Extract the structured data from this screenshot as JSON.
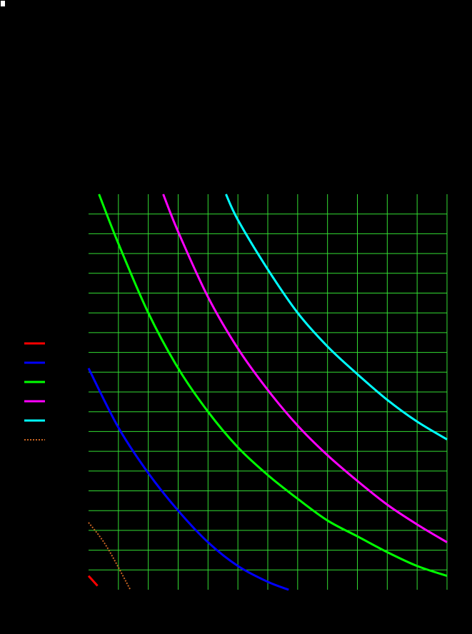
{
  "page": {
    "background": "#000000"
  },
  "chart_data": {
    "type": "line",
    "title": "",
    "xlabel": "",
    "ylabel": "",
    "grid": true,
    "grid_color": "#33dd33",
    "legend_placement": "left",
    "xlim": [
      0,
      12
    ],
    "ylim": [
      0,
      20
    ],
    "x_ticks": [
      0,
      1,
      2,
      3,
      4,
      5,
      6,
      7,
      8,
      9,
      10,
      11,
      12
    ],
    "y_ticks": [
      0,
      1,
      2,
      3,
      4,
      5,
      6,
      7,
      8,
      9,
      10,
      11,
      12,
      13,
      14,
      15,
      16,
      17,
      18,
      19,
      20
    ],
    "series": [
      {
        "color": "#ff0000",
        "dash": "solid",
        "points": [
          [
            0,
            0.7
          ],
          [
            0.3,
            0.2
          ]
        ]
      },
      {
        "color": "#0000ff",
        "dash": "solid",
        "points": [
          [
            0,
            11.2
          ],
          [
            1,
            8.2
          ],
          [
            2,
            5.9
          ],
          [
            3,
            4.0
          ],
          [
            4,
            2.4
          ],
          [
            5,
            1.2
          ],
          [
            6,
            0.4
          ],
          [
            6.7,
            0
          ]
        ]
      },
      {
        "color": "#00ff00",
        "dash": "solid",
        "points": [
          [
            0.35,
            20
          ],
          [
            1,
            17.5
          ],
          [
            2,
            14.0
          ],
          [
            3,
            11.2
          ],
          [
            4,
            9.0
          ],
          [
            5,
            7.2
          ],
          [
            6,
            5.8
          ],
          [
            7,
            4.6
          ],
          [
            8,
            3.5
          ],
          [
            9,
            2.7
          ],
          [
            10,
            1.9
          ],
          [
            11,
            1.2
          ],
          [
            12,
            0.7
          ]
        ]
      },
      {
        "color": "#ff00ff",
        "dash": "solid",
        "points": [
          [
            2.5,
            20
          ],
          [
            3,
            18.1
          ],
          [
            4,
            14.8
          ],
          [
            5,
            12.2
          ],
          [
            6,
            10.1
          ],
          [
            7,
            8.3
          ],
          [
            8,
            6.8
          ],
          [
            9,
            5.5
          ],
          [
            10,
            4.3
          ],
          [
            11,
            3.3
          ],
          [
            12,
            2.4
          ]
        ]
      },
      {
        "color": "#00ffff",
        "dash": "solid",
        "points": [
          [
            4.6,
            20
          ],
          [
            5,
            18.7
          ],
          [
            6,
            16.2
          ],
          [
            7,
            14.0
          ],
          [
            8,
            12.3
          ],
          [
            9,
            10.9
          ],
          [
            10,
            9.6
          ],
          [
            11,
            8.5
          ],
          [
            12,
            7.6
          ]
        ]
      },
      {
        "color": "#cc6622",
        "dash": "dotted",
        "points": [
          [
            0,
            3.4
          ],
          [
            0.6,
            2.2
          ],
          [
            1.4,
            0
          ]
        ]
      }
    ],
    "legend": [
      {
        "color": "#ff0000",
        "dash": "solid"
      },
      {
        "color": "#0000ff",
        "dash": "solid"
      },
      {
        "color": "#00ff00",
        "dash": "solid"
      },
      {
        "color": "#ff00ff",
        "dash": "solid"
      },
      {
        "color": "#00ffff",
        "dash": "solid"
      },
      {
        "color": "#cc6622",
        "dash": "dotted"
      }
    ]
  }
}
